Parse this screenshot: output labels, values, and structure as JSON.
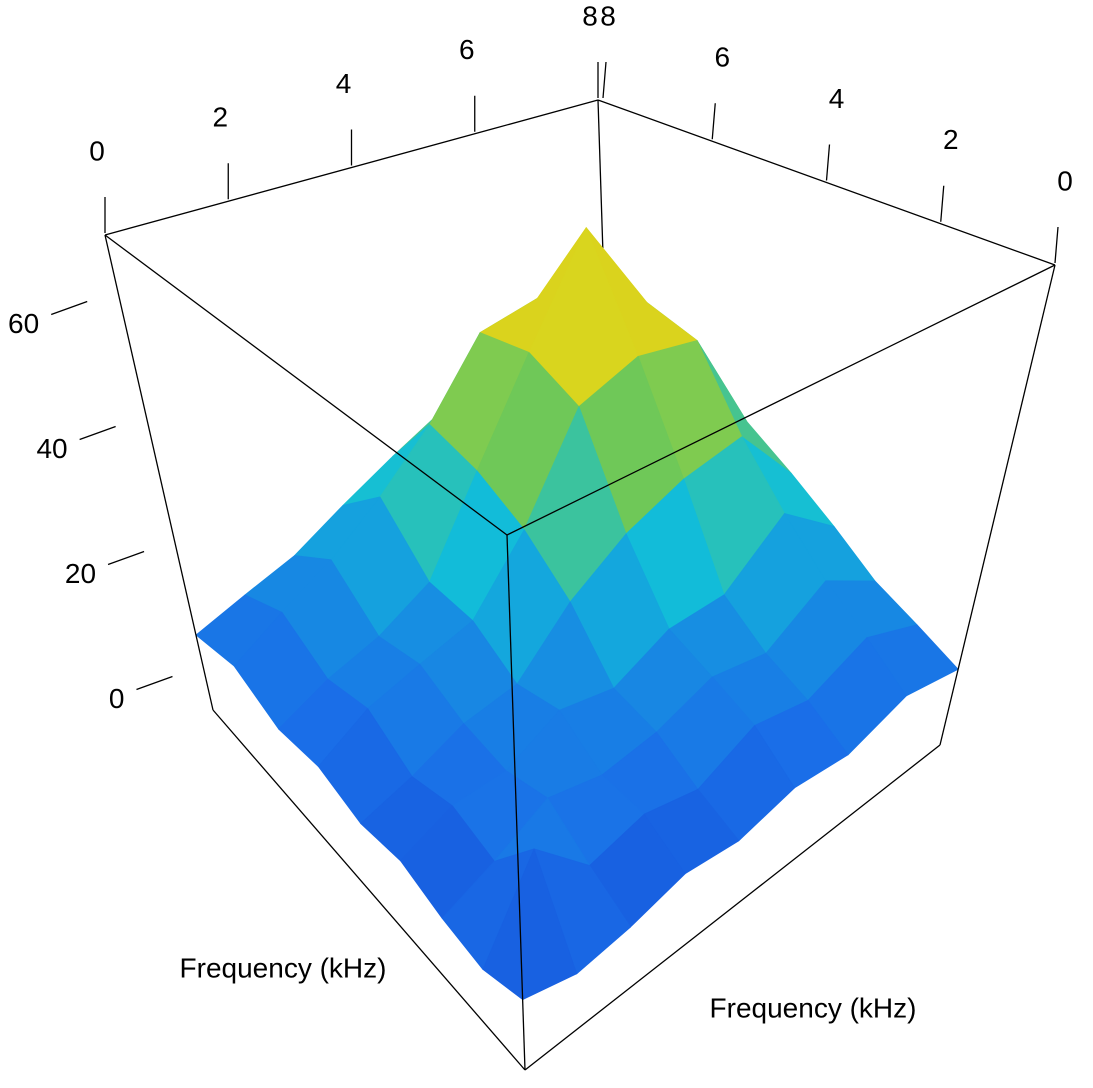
{
  "chart_data": {
    "type": "surface",
    "xlabel": "Frequency (kHz)",
    "ylabel": "Frequency (kHz)",
    "x": [
      0,
      1,
      2,
      3,
      4,
      5,
      6,
      7,
      8
    ],
    "y": [
      0,
      1,
      2,
      3,
      4,
      5,
      6,
      7,
      8
    ],
    "z": [
      [
        4,
        2,
        3,
        5,
        4,
        6,
        5,
        8,
        6
      ],
      [
        2,
        14,
        6,
        8,
        6,
        10,
        8,
        12,
        8
      ],
      [
        3,
        6,
        10,
        8,
        9,
        12,
        10,
        16,
        10
      ],
      [
        5,
        8,
        8,
        12,
        10,
        14,
        14,
        22,
        14
      ],
      [
        4,
        6,
        9,
        10,
        18,
        24,
        28,
        30,
        18
      ],
      [
        6,
        10,
        12,
        14,
        24,
        40,
        44,
        42,
        22
      ],
      [
        5,
        8,
        10,
        14,
        28,
        44,
        62,
        44,
        24
      ],
      [
        8,
        12,
        16,
        22,
        30,
        42,
        44,
        40,
        20
      ],
      [
        6,
        8,
        10,
        14,
        18,
        22,
        24,
        20,
        12
      ]
    ],
    "xlim": [
      0,
      8
    ],
    "ylim": [
      0,
      8
    ],
    "zlim": [
      -6,
      70
    ],
    "xticks": [
      0,
      2,
      4,
      6,
      8
    ],
    "yticks": [
      0,
      2,
      4,
      6,
      8
    ],
    "zticks": [
      0,
      20,
      40,
      60
    ],
    "colormap": [
      "#0a0ab4",
      "#1a6ee8",
      "#12bfd8",
      "#6cc85a",
      "#d8d820",
      "#f0a000"
    ]
  }
}
